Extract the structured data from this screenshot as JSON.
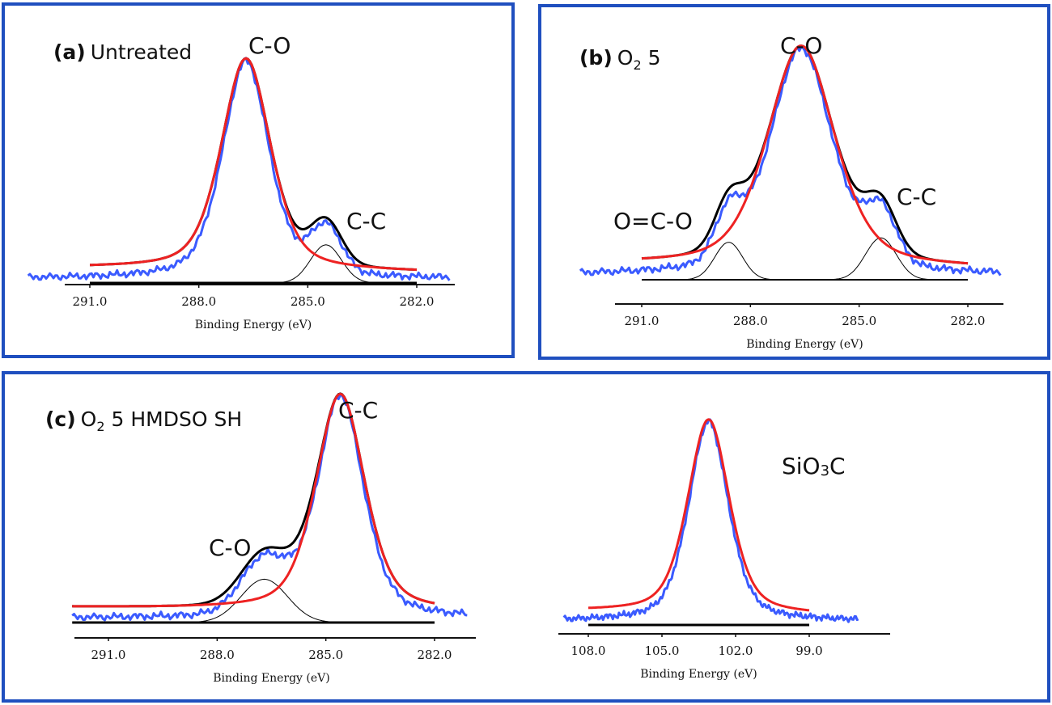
{
  "figure": {
    "panels": [
      {
        "id": "a",
        "letter": "(a)",
        "title": "Untreated"
      },
      {
        "id": "b",
        "letter": "(b)",
        "title_main": "O",
        "title_sub": "2",
        "title_tail": " 5"
      },
      {
        "id": "c",
        "letter": "(c)",
        "title_main": "O",
        "title_sub": "2",
        "title_tail": " 5 HMDSO SH"
      }
    ],
    "colors": {
      "raw_spectrum": "#3b5bff",
      "envelope_fit": "#ee2222",
      "sum_fit": "#000000",
      "component": "#000000",
      "border": "#1f4fbf"
    }
  },
  "chart_data": [
    {
      "id": "a",
      "type": "line",
      "title": "(a) Untreated",
      "xlabel": "Binding Energy (eV)",
      "ylabel": "",
      "xlim": [
        292.8,
        281.0
      ],
      "x_reversed": true,
      "xticks": [
        291.0,
        288.0,
        285.0,
        282.0
      ],
      "xtick_labels": [
        "291.0",
        "288.0",
        "285.0",
        "282.0"
      ],
      "annotations": [
        {
          "text": "C-O",
          "x": 286.5
        },
        {
          "text": "C-C",
          "x": 283.7
        }
      ],
      "peaks": [
        {
          "name": "C-O",
          "center": 286.7,
          "fwhm": 1.6,
          "height": 1.0
        },
        {
          "name": "C-C",
          "center": 284.5,
          "fwhm": 1.0,
          "height": 0.18
        }
      ],
      "series": [
        {
          "name": "raw",
          "color": "#3b5bff"
        },
        {
          "name": "envelope_fit",
          "color": "#ee2222"
        },
        {
          "name": "sum_fit",
          "color": "#000000"
        },
        {
          "name": "component_C-C",
          "color": "#000000"
        },
        {
          "name": "baseline",
          "color": "#000000"
        }
      ]
    },
    {
      "id": "b",
      "type": "line",
      "title": "(b) O2 5",
      "xlabel": "Binding Energy (eV)",
      "ylabel": "",
      "xlim": [
        292.8,
        281.0
      ],
      "x_reversed": true,
      "xticks": [
        291.0,
        288.0,
        285.0,
        282.0
      ],
      "xtick_labels": [
        "291.0",
        "288.0",
        "285.0",
        "282.0"
      ],
      "annotations": [
        {
          "text": "C-O",
          "x": 286.5
        },
        {
          "text": "O=C-O",
          "x": 289.5
        },
        {
          "text": "C-C",
          "x": 283.6
        }
      ],
      "peaks": [
        {
          "name": "C-O",
          "center": 286.6,
          "fwhm": 2.2,
          "height": 1.0
        },
        {
          "name": "O=C-O",
          "center": 288.6,
          "fwhm": 0.9,
          "height": 0.17
        },
        {
          "name": "C-C",
          "center": 284.4,
          "fwhm": 1.0,
          "height": 0.19
        }
      ],
      "series": [
        {
          "name": "raw",
          "color": "#3b5bff"
        },
        {
          "name": "envelope_fit",
          "color": "#ee2222"
        },
        {
          "name": "sum_fit",
          "color": "#000000"
        },
        {
          "name": "component_O=C-O",
          "color": "#000000"
        },
        {
          "name": "component_C-C",
          "color": "#000000"
        },
        {
          "name": "baseline",
          "color": "#000000"
        }
      ]
    },
    {
      "id": "c",
      "type": "line",
      "title": "(c) O2 5 HMDSO SH",
      "xlabel": "Binding Energy (eV)",
      "ylabel": "",
      "xlim": [
        292.0,
        281.0
      ],
      "x_reversed": true,
      "xticks": [
        291.0,
        288.0,
        285.0,
        282.0
      ],
      "xtick_labels": [
        "291.0",
        "288.0",
        "285.0",
        "282.0"
      ],
      "annotations": [
        {
          "text": "C-O",
          "x": 287.0
        },
        {
          "text": "C-C",
          "x": 284.4
        }
      ],
      "peaks": [
        {
          "name": "C-C",
          "center": 284.6,
          "fwhm": 1.6,
          "height": 1.0
        },
        {
          "name": "C-O",
          "center": 286.7,
          "fwhm": 1.5,
          "height": 0.2
        }
      ],
      "series": [
        {
          "name": "raw",
          "color": "#3b5bff"
        },
        {
          "name": "envelope_fit",
          "color": "#ee2222"
        },
        {
          "name": "sum_fit",
          "color": "#000000"
        },
        {
          "name": "component_C-O",
          "color": "#000000"
        },
        {
          "name": "baseline",
          "color": "#000000"
        }
      ]
    },
    {
      "id": "d",
      "type": "line",
      "title": "",
      "xlabel": "Binding Energy (eV)",
      "ylabel": "",
      "xlim": [
        109.0,
        97.0
      ],
      "x_reversed": true,
      "xticks": [
        108.0,
        105.0,
        102.0,
        99.0
      ],
      "xtick_labels": [
        "108.0",
        "105.0",
        "102.0",
        "99.0"
      ],
      "annotations": [
        {
          "text": "SiO",
          "sub": "3",
          "tail": "C",
          "x": 101.3
        }
      ],
      "peaks": [
        {
          "name": "SiO3C",
          "center": 103.1,
          "fwhm": 2.0,
          "height": 1.0
        }
      ],
      "series": [
        {
          "name": "raw",
          "color": "#3b5bff"
        },
        {
          "name": "envelope_fit",
          "color": "#ee2222"
        },
        {
          "name": "baseline",
          "color": "#000000"
        }
      ]
    }
  ]
}
